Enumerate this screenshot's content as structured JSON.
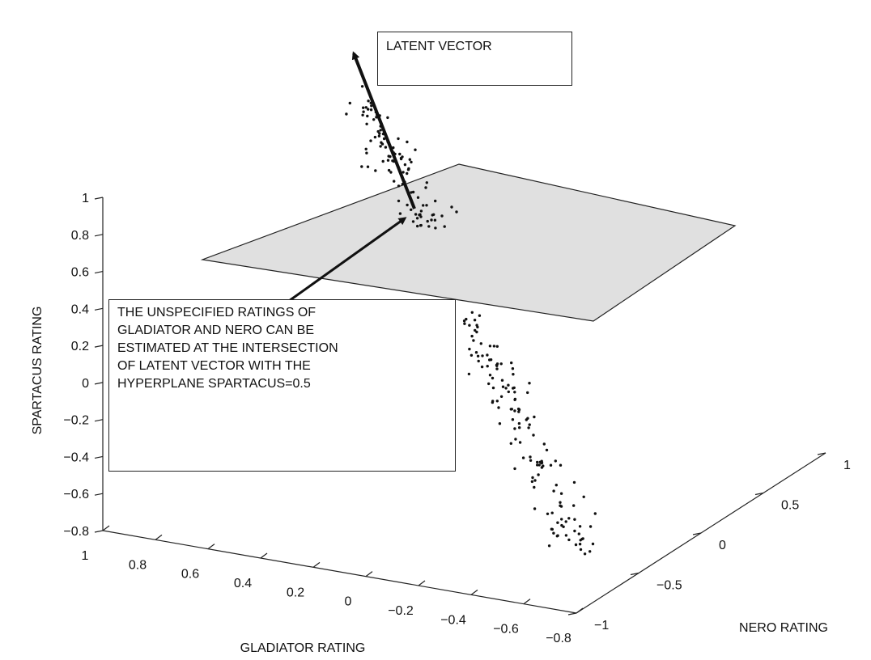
{
  "annotations": {
    "latent_label": "LATENT VECTOR",
    "note_lines": [
      "THE UNSPECIFIED RATINGS OF",
      "GLADIATOR AND NERO CAN BE",
      "ESTIMATED AT THE INTERSECTION",
      "OF LATENT VECTOR WITH THE",
      "HYPERPLANE SPARTACUS=0.5"
    ]
  },
  "chart_data": {
    "type": "scatter",
    "dimensions": 3,
    "zlabel": "SPARTACUS RATING",
    "xlabel": "GLADIATOR RATING",
    "ylabel": "NERO RATING",
    "x_ticks": [
      "1",
      "0.8",
      "0.6",
      "0.4",
      "0.2",
      "0",
      "−0.2",
      "−0.4",
      "−0.6",
      "−0.8"
    ],
    "y_ticks": [
      "−1",
      "−0.5",
      "0",
      "0.5",
      "1"
    ],
    "z_ticks": [
      "1",
      "0.8",
      "0.6",
      "0.4",
      "0.2",
      "0",
      "−0.2",
      "−0.4",
      "−0.6",
      "−0.8"
    ],
    "xlim": [
      -0.8,
      1
    ],
    "ylim": [
      -1,
      1
    ],
    "zlim": [
      -0.8,
      1
    ],
    "hyperplane": {
      "z": 0.5,
      "color": "#e0e0e0"
    },
    "latent_vector": {
      "from": [
        -0.3,
        0.4,
        0.9
      ],
      "direction": "upward along the point cloud"
    },
    "points_description_values": {
      "count": 300,
      "z_range": [
        -0.8,
        1.2
      ]
    },
    "colors": {
      "points": "#111111",
      "axes": "#222222",
      "plane_fill": "#e0e0e0"
    }
  }
}
